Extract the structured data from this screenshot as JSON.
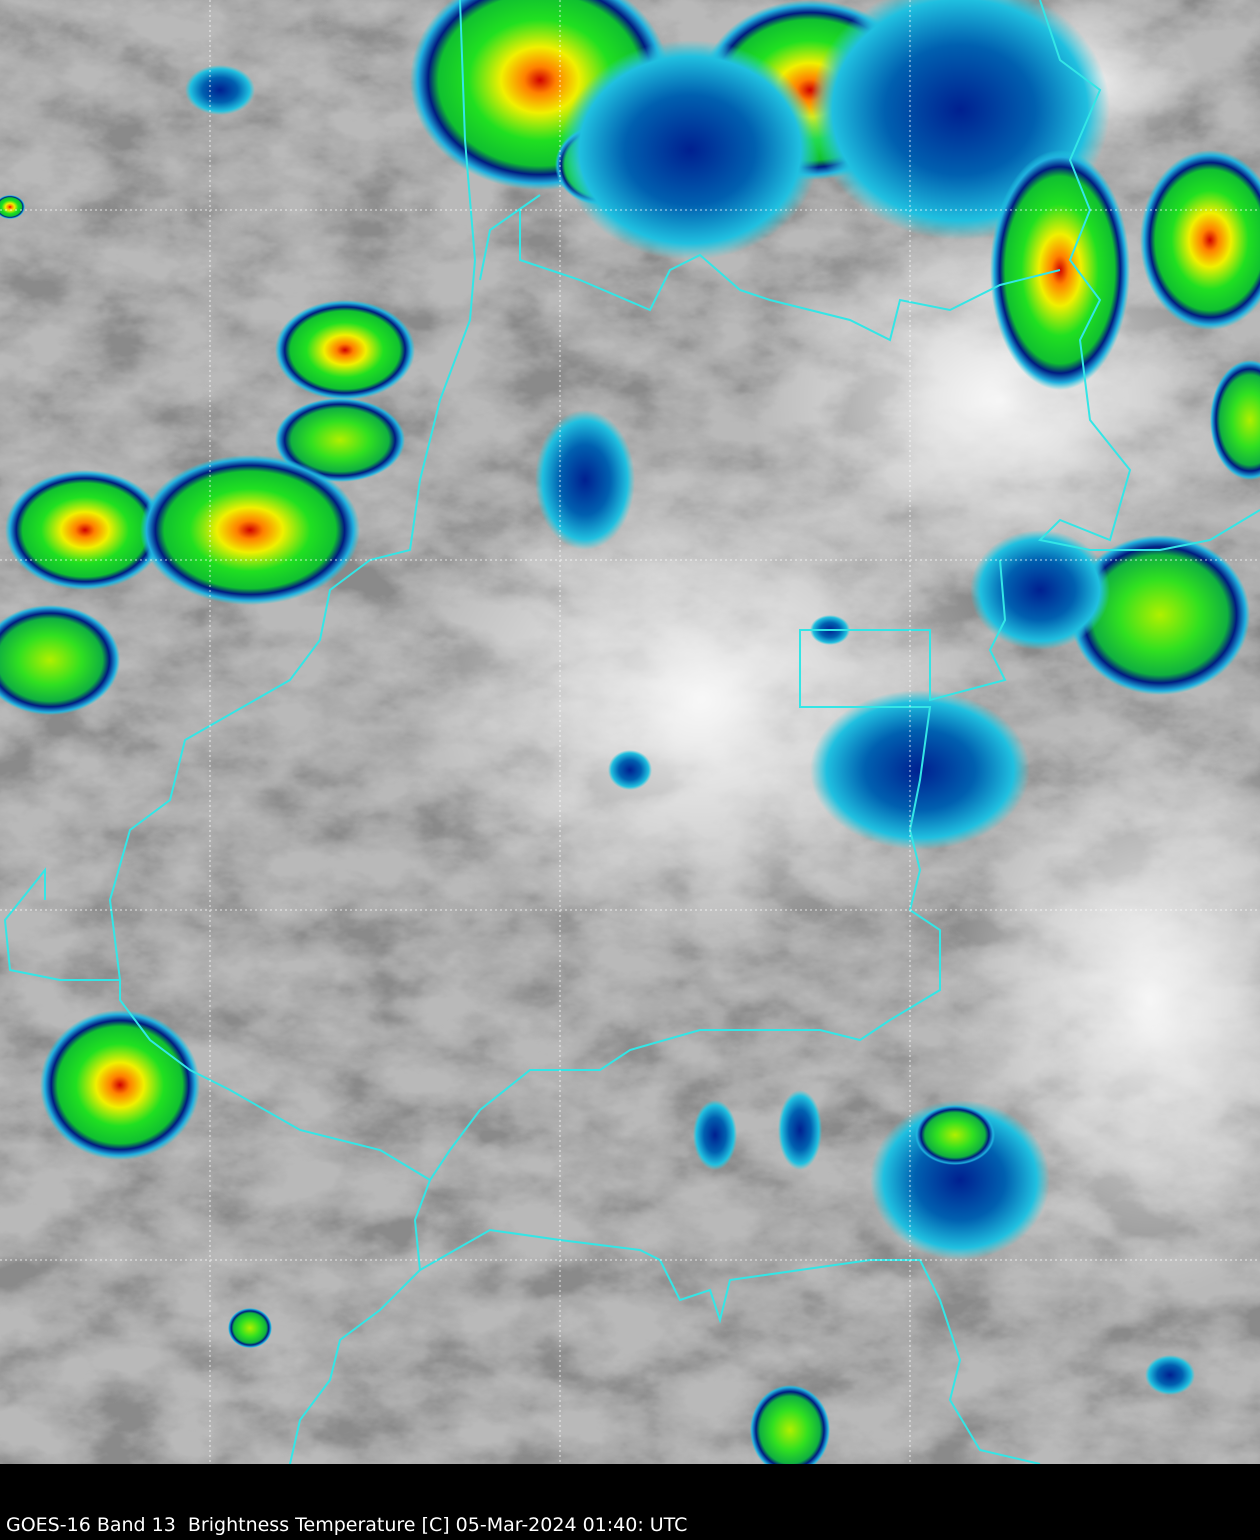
{
  "caption": "GOES-16 Band 13  Brightness Temperature [C] 05-Mar-2024 01:40: UTC",
  "colors": {
    "background": "#000000",
    "borders": "#33e6e6",
    "gridlines": "#ffffff",
    "cold_cloud_scale": [
      "#001a80",
      "#0070c0",
      "#20d0e0",
      "#20e020",
      "#f0f000",
      "#ff8000",
      "#d00000",
      "#600000"
    ]
  },
  "layers": [
    "infrared-brightness-temperature",
    "political-borders",
    "lat-lon-grid"
  ]
}
